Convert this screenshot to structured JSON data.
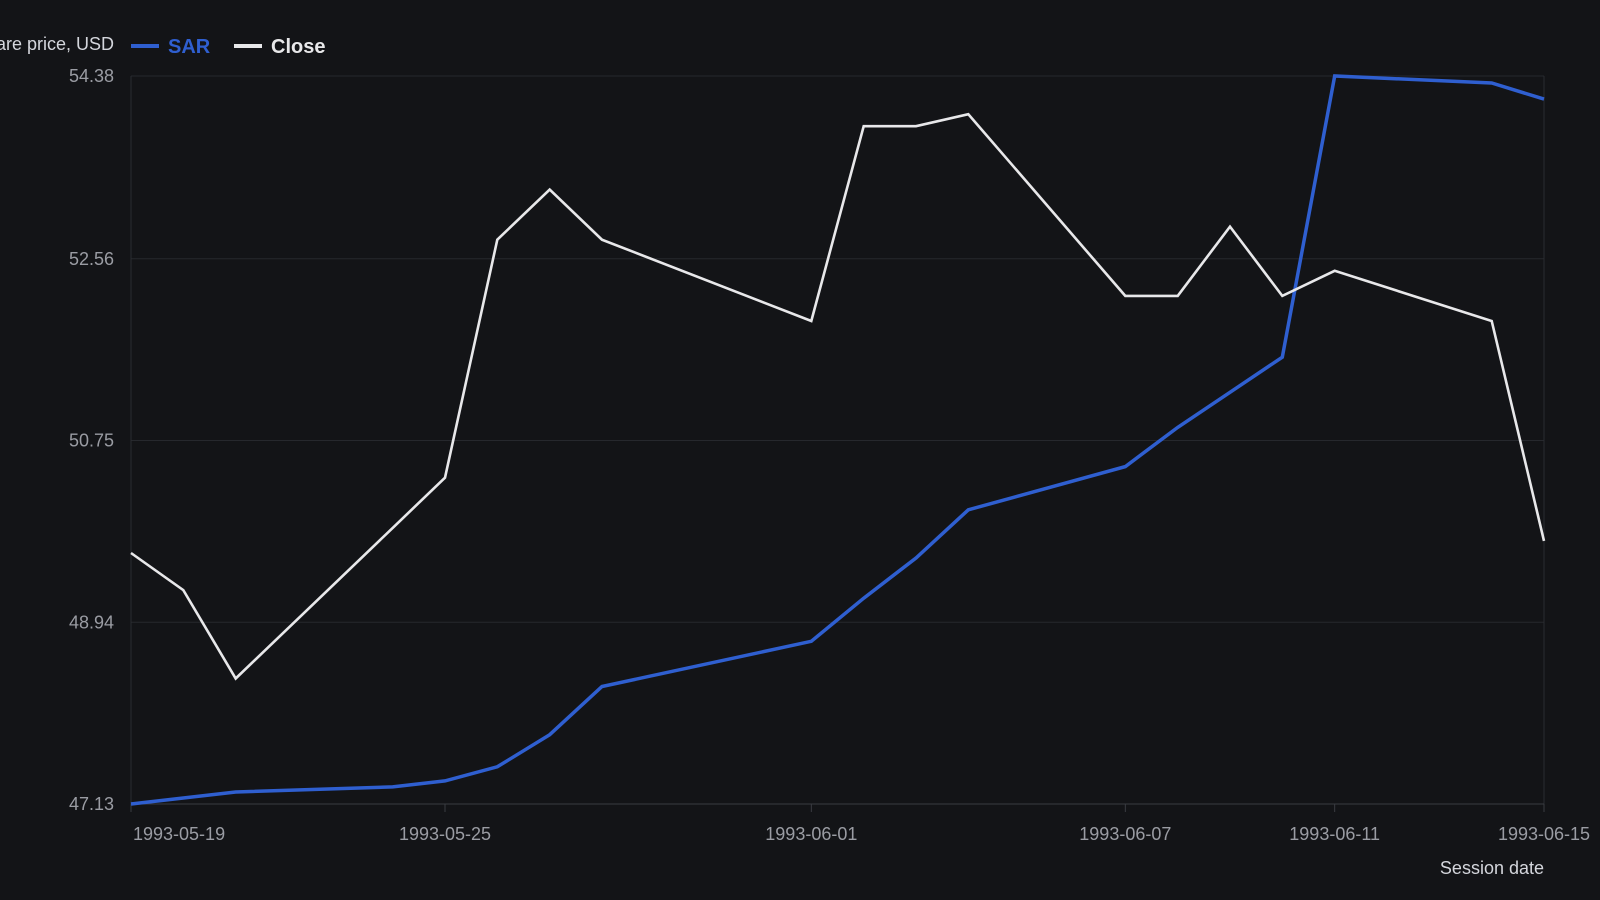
{
  "chart_data": {
    "type": "line",
    "ylabel": "Share price, USD",
    "xlabel": "Session date",
    "x": [
      "1993-05-19",
      "1993-05-20",
      "1993-05-21",
      "1993-05-24",
      "1993-05-25",
      "1993-05-26",
      "1993-05-27",
      "1993-05-28",
      "1993-06-01",
      "1993-06-02",
      "1993-06-03",
      "1993-06-04",
      "1993-06-07",
      "1993-06-08",
      "1993-06-09",
      "1993-06-10",
      "1993-06-11",
      "1993-06-14",
      "1993-06-15"
    ],
    "x_ticks": [
      "1993-05-19",
      "1993-05-25",
      "1993-06-01",
      "1993-06-07",
      "1993-06-11",
      "1993-06-15"
    ],
    "y_ticks": [
      "47.13",
      "48.94",
      "50.75",
      "52.56",
      "54.38"
    ],
    "ylim": [
      47.13,
      54.38
    ],
    "grid": true,
    "legend_position": "top-left",
    "series": [
      {
        "name": "SAR",
        "color": "#2f5fd0",
        "values": [
          47.13,
          47.19,
          47.25,
          47.3,
          47.36,
          47.5,
          47.82,
          48.3,
          48.75,
          49.18,
          49.58,
          50.06,
          50.49,
          50.88,
          51.23,
          51.58,
          54.38,
          54.31,
          54.15
        ]
      },
      {
        "name": "Close",
        "color": "#e8e8ea",
        "values": [
          49.63,
          49.26,
          48.38,
          49.88,
          50.38,
          52.75,
          53.25,
          52.75,
          51.94,
          53.88,
          53.88,
          54.0,
          52.19,
          52.19,
          52.88,
          52.19,
          52.44,
          51.94,
          49.75
        ]
      }
    ]
  }
}
